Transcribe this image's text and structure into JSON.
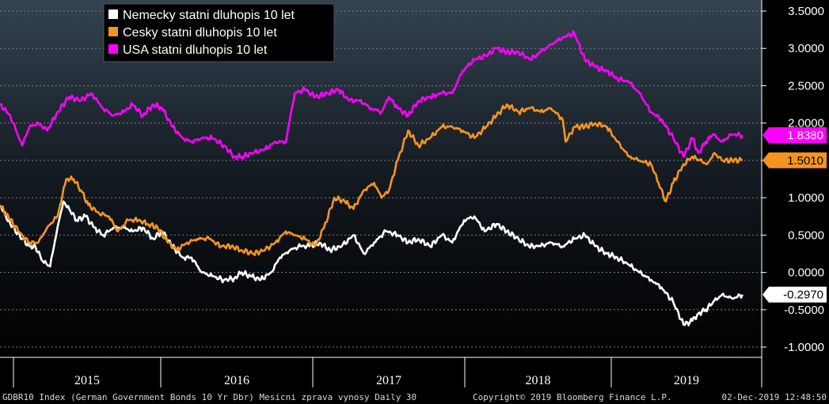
{
  "chart_data": {
    "type": "line",
    "x_axis": {
      "categories": [
        "2015",
        "2016",
        "2017",
        "2018",
        "2019"
      ]
    },
    "y_axis": {
      "ylim": [
        -1.0,
        3.5
      ],
      "ticks": [
        "3.5000",
        "3.0000",
        "2.5000",
        "2.0000",
        "1.5000",
        "1.0000",
        "0.5000",
        "0.0000",
        "-0.5000",
        "-1.0000"
      ],
      "tick_values": [
        3.5,
        3.0,
        2.5,
        2.0,
        1.5,
        1.0,
        0.5,
        0.0,
        -0.5,
        -1.0
      ],
      "position": "right"
    },
    "grid": "horizontal dashed",
    "legend_position": "top-left",
    "series": [
      {
        "name": "Nemecky statni dluhopis 10 let",
        "color": "#ffffff",
        "last_label": "-0.2970",
        "x": [
          2014.88,
          2014.95,
          2015.03,
          2015.08,
          2015.12,
          2015.17,
          2015.22,
          2015.27,
          2015.31,
          2015.35,
          2015.4,
          2015.46,
          2015.52,
          2015.58,
          2015.65,
          2015.72,
          2015.78,
          2015.85,
          2015.92,
          2015.98,
          2016.05,
          2016.12,
          2016.18,
          2016.25,
          2016.32,
          2016.4,
          2016.47,
          2016.52,
          2016.58,
          2016.65,
          2016.72,
          2016.78,
          2016.85,
          2016.92,
          2016.98,
          2017.05,
          2017.12,
          2017.2,
          2017.28,
          2017.35,
          2017.42,
          2017.5,
          2017.58,
          2017.65,
          2017.72,
          2017.8,
          2017.88,
          2017.95,
          2018.03,
          2018.1,
          2018.17,
          2018.25,
          2018.32,
          2018.4,
          2018.47,
          2018.55,
          2018.62,
          2018.7,
          2018.78,
          2018.85,
          2018.92,
          2019.0,
          2019.07,
          2019.15,
          2019.22,
          2019.3,
          2019.37,
          2019.45,
          2019.52,
          2019.58,
          2019.62,
          2019.67,
          2019.72,
          2019.78,
          2019.85,
          2019.92
        ],
        "y": [
          0.9,
          0.65,
          0.45,
          0.35,
          0.35,
          0.15,
          0.08,
          0.6,
          0.95,
          0.85,
          0.7,
          0.75,
          0.6,
          0.5,
          0.6,
          0.6,
          0.55,
          0.6,
          0.45,
          0.55,
          0.35,
          0.2,
          0.2,
          0.0,
          -0.05,
          -0.1,
          -0.08,
          0.0,
          -0.05,
          -0.1,
          0.0,
          0.2,
          0.3,
          0.35,
          0.35,
          0.4,
          0.3,
          0.35,
          0.5,
          0.25,
          0.4,
          0.55,
          0.5,
          0.4,
          0.45,
          0.35,
          0.5,
          0.4,
          0.7,
          0.75,
          0.55,
          0.65,
          0.55,
          0.45,
          0.35,
          0.35,
          0.4,
          0.35,
          0.45,
          0.5,
          0.35,
          0.25,
          0.2,
          0.1,
          0.0,
          -0.1,
          -0.2,
          -0.4,
          -0.7,
          -0.65,
          -0.55,
          -0.5,
          -0.4,
          -0.3,
          -0.35,
          -0.297
        ]
      },
      {
        "name": "Cesky statni dluhopis 10 let",
        "color": "#f7941d",
        "last_label": "1.5010",
        "x": [
          2014.88,
          2014.95,
          2015.03,
          2015.08,
          2015.14,
          2015.2,
          2015.27,
          2015.33,
          2015.38,
          2015.43,
          2015.48,
          2015.55,
          2015.62,
          2015.68,
          2015.75,
          2015.82,
          2015.88,
          2015.95,
          2016.02,
          2016.08,
          2016.15,
          2016.22,
          2016.3,
          2016.38,
          2016.45,
          2016.52,
          2016.6,
          2016.68,
          2016.75,
          2016.82,
          2016.88,
          2016.95,
          2017.02,
          2017.08,
          2017.15,
          2017.22,
          2017.28,
          2017.35,
          2017.42,
          2017.47,
          2017.52,
          2017.58,
          2017.65,
          2017.72,
          2017.8,
          2017.88,
          2017.95,
          2018.02,
          2018.1,
          2018.18,
          2018.25,
          2018.32,
          2018.4,
          2018.48,
          2018.55,
          2018.62,
          2018.7,
          2018.72,
          2018.78,
          2018.85,
          2018.92,
          2019.0,
          2019.07,
          2019.15,
          2019.22,
          2019.3,
          2019.35,
          2019.4,
          2019.45,
          2019.52,
          2019.58,
          2019.63,
          2019.68,
          2019.73,
          2019.78,
          2019.85,
          2019.92
        ],
        "y": [
          0.9,
          0.7,
          0.5,
          0.4,
          0.4,
          0.6,
          0.75,
          1.25,
          1.25,
          1.1,
          0.9,
          0.8,
          0.75,
          0.55,
          0.7,
          0.7,
          0.65,
          0.6,
          0.4,
          0.3,
          0.4,
          0.45,
          0.45,
          0.35,
          0.35,
          0.3,
          0.25,
          0.3,
          0.4,
          0.55,
          0.5,
          0.45,
          0.35,
          0.6,
          1.0,
          0.95,
          0.85,
          1.1,
          1.2,
          1.0,
          1.1,
          1.5,
          1.9,
          1.7,
          1.8,
          1.95,
          1.95,
          1.9,
          1.8,
          1.95,
          2.1,
          2.25,
          2.15,
          2.2,
          2.15,
          2.2,
          2.05,
          1.75,
          1.95,
          1.95,
          2.0,
          1.95,
          1.75,
          1.55,
          1.5,
          1.45,
          1.2,
          0.95,
          1.2,
          1.45,
          1.55,
          1.5,
          1.45,
          1.6,
          1.5,
          1.5,
          1.501
        ]
      },
      {
        "name": "USA statni dluhopis 10 let",
        "color": "#ff00ff",
        "last_label": "1.8380",
        "x": [
          2014.88,
          2014.95,
          2015.03,
          2015.08,
          2015.14,
          2015.2,
          2015.27,
          2015.35,
          2015.43,
          2015.5,
          2015.58,
          2015.65,
          2015.72,
          2015.78,
          2015.85,
          2015.92,
          2015.98,
          2016.05,
          2016.12,
          2016.18,
          2016.25,
          2016.32,
          2016.4,
          2016.47,
          2016.52,
          2016.6,
          2016.68,
          2016.75,
          2016.82,
          2016.88,
          2016.95,
          2017.02,
          2017.1,
          2017.18,
          2017.25,
          2017.32,
          2017.4,
          2017.47,
          2017.52,
          2017.58,
          2017.65,
          2017.72,
          2017.8,
          2017.88,
          2017.95,
          2018.02,
          2018.1,
          2018.18,
          2018.25,
          2018.32,
          2018.4,
          2018.48,
          2018.55,
          2018.62,
          2018.7,
          2018.78,
          2018.85,
          2018.92,
          2019.0,
          2019.07,
          2019.15,
          2019.22,
          2019.3,
          2019.37,
          2019.45,
          2019.52,
          2019.58,
          2019.62,
          2019.67,
          2019.72,
          2019.78,
          2019.85,
          2019.92
        ],
        "y": [
          2.25,
          2.1,
          1.7,
          1.95,
          2.0,
          1.9,
          2.15,
          2.35,
          2.3,
          2.4,
          2.2,
          2.1,
          2.15,
          2.25,
          2.1,
          2.25,
          2.2,
          1.95,
          1.8,
          1.75,
          1.8,
          1.8,
          1.7,
          1.55,
          1.55,
          1.6,
          1.65,
          1.75,
          1.75,
          2.4,
          2.45,
          2.35,
          2.4,
          2.45,
          2.3,
          2.3,
          2.2,
          2.15,
          2.35,
          2.2,
          2.1,
          2.3,
          2.35,
          2.4,
          2.4,
          2.7,
          2.85,
          2.9,
          3.0,
          2.95,
          2.95,
          2.85,
          2.95,
          3.05,
          3.15,
          3.2,
          2.85,
          2.75,
          2.7,
          2.6,
          2.55,
          2.4,
          2.15,
          2.05,
          1.8,
          1.55,
          1.8,
          1.6,
          1.75,
          1.85,
          1.75,
          1.85,
          1.838
        ]
      }
    ]
  },
  "footer": {
    "left": "GDBR10 Index (German Government Bonds 10 Yr Dbr) Mesicni zprava vynosy  Daily 30",
    "center": "Copyright© 2019 Bloomberg Finance L.P.",
    "right": "02-Dec-2019 12:48:50"
  }
}
